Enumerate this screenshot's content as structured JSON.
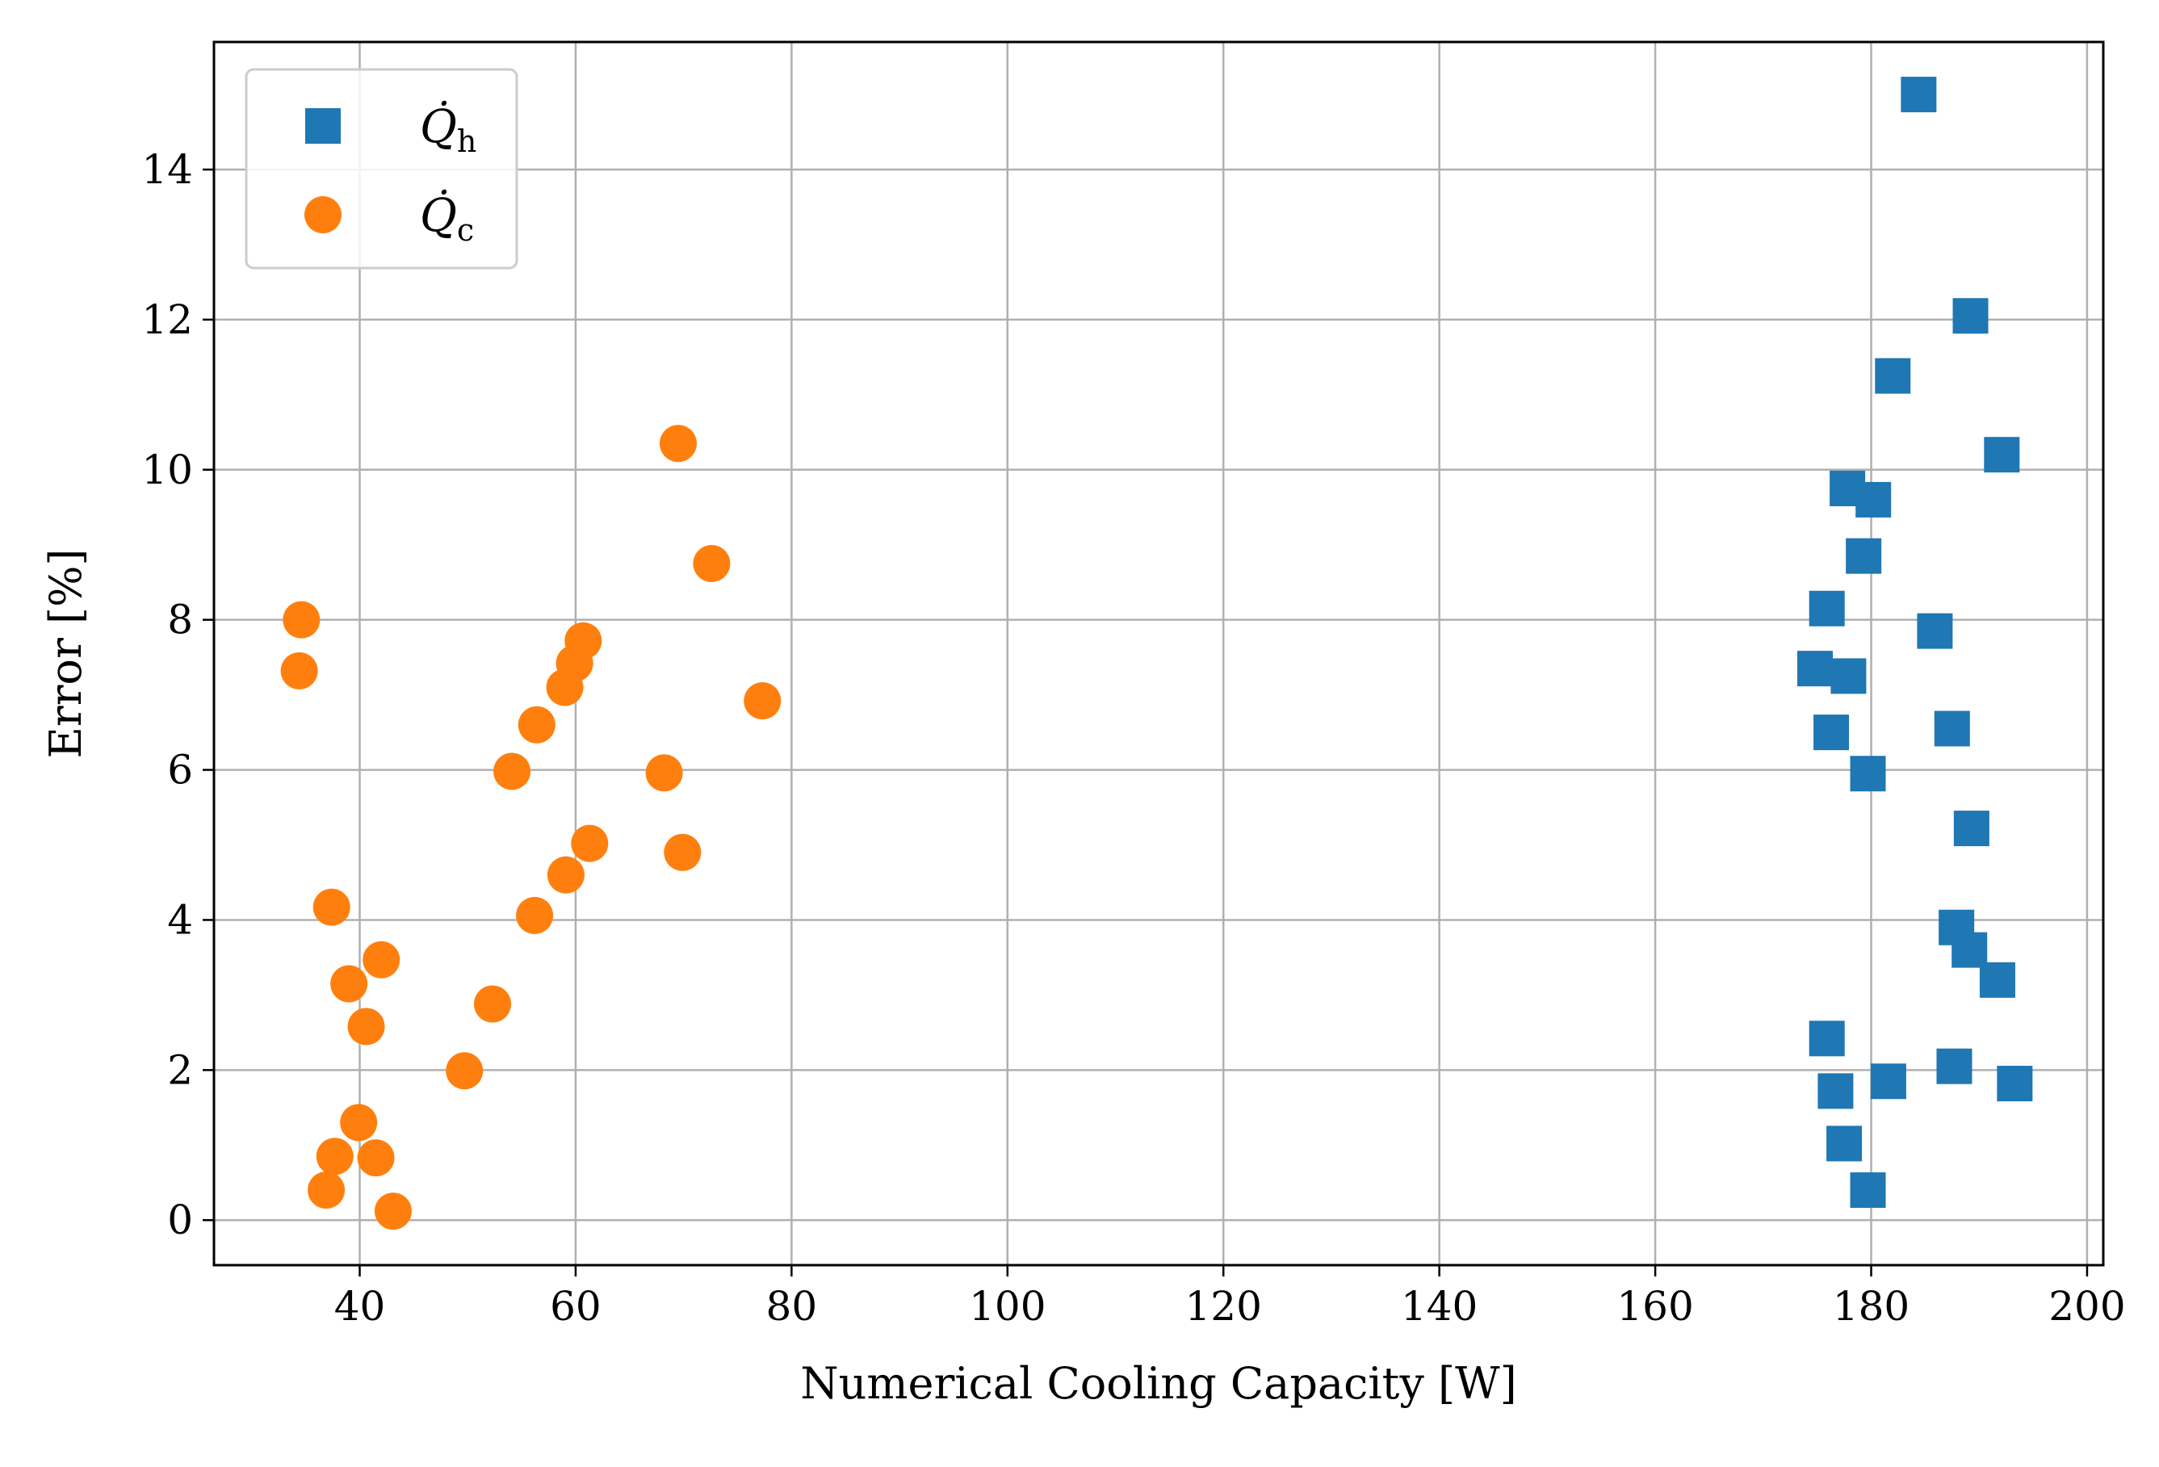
{
  "chart_data": {
    "type": "scatter",
    "title": "",
    "xlabel": "Numerical Cooling Capacity [W]",
    "ylabel": "Error [%]",
    "xlim": [
      26.5,
      201.5
    ],
    "ylim": [
      -0.6,
      15.7
    ],
    "xticks": [
      40,
      60,
      80,
      100,
      120,
      140,
      160,
      180,
      200
    ],
    "yticks": [
      0,
      2,
      4,
      6,
      8,
      10,
      12,
      14
    ],
    "xtick_labels": [
      "40",
      "60",
      "80",
      "100",
      "120",
      "140",
      "160",
      "180",
      "200"
    ],
    "ytick_labels": [
      "0",
      "2",
      "4",
      "6",
      "8",
      "10",
      "12",
      "14"
    ],
    "grid": true,
    "legend_position": "top-left",
    "series": [
      {
        "name": "Q̇h",
        "legend_symbol": "Q̇",
        "legend_subscript": "h",
        "marker": "square",
        "color": "#1f77b4",
        "points": [
          [
            184.4,
            15.0
          ],
          [
            189.2,
            12.05
          ],
          [
            182.0,
            11.25
          ],
          [
            192.1,
            10.2
          ],
          [
            177.8,
            9.75
          ],
          [
            180.2,
            9.6
          ],
          [
            179.3,
            8.85
          ],
          [
            175.9,
            8.15
          ],
          [
            185.9,
            7.85
          ],
          [
            174.8,
            7.35
          ],
          [
            177.9,
            7.25
          ],
          [
            187.5,
            6.55
          ],
          [
            176.3,
            6.5
          ],
          [
            179.7,
            5.95
          ],
          [
            189.3,
            5.22
          ],
          [
            187.9,
            3.9
          ],
          [
            189.1,
            3.6
          ],
          [
            191.7,
            3.2
          ],
          [
            175.9,
            2.42
          ],
          [
            187.7,
            2.05
          ],
          [
            181.6,
            1.85
          ],
          [
            193.3,
            1.82
          ],
          [
            176.7,
            1.72
          ],
          [
            177.5,
            1.02
          ],
          [
            179.7,
            0.4
          ]
        ]
      },
      {
        "name": "Q̇c",
        "legend_symbol": "Q̇",
        "legend_subscript": "c",
        "marker": "circle",
        "color": "#ff7f0e",
        "points": [
          [
            69.5,
            10.35
          ],
          [
            72.6,
            8.75
          ],
          [
            34.6,
            8.0
          ],
          [
            60.7,
            7.72
          ],
          [
            59.9,
            7.42
          ],
          [
            34.4,
            7.32
          ],
          [
            59.0,
            7.1
          ],
          [
            77.3,
            6.92
          ],
          [
            56.4,
            6.6
          ],
          [
            54.1,
            5.98
          ],
          [
            68.2,
            5.96
          ],
          [
            61.3,
            5.02
          ],
          [
            69.9,
            4.9
          ],
          [
            59.1,
            4.6
          ],
          [
            56.2,
            4.06
          ],
          [
            37.4,
            4.17
          ],
          [
            42.0,
            3.47
          ],
          [
            39.0,
            3.15
          ],
          [
            52.3,
            2.88
          ],
          [
            40.6,
            2.58
          ],
          [
            49.7,
            1.99
          ],
          [
            39.9,
            1.3
          ],
          [
            37.7,
            0.85
          ],
          [
            41.5,
            0.83
          ],
          [
            36.9,
            0.4
          ],
          [
            43.1,
            0.12
          ]
        ]
      }
    ]
  }
}
